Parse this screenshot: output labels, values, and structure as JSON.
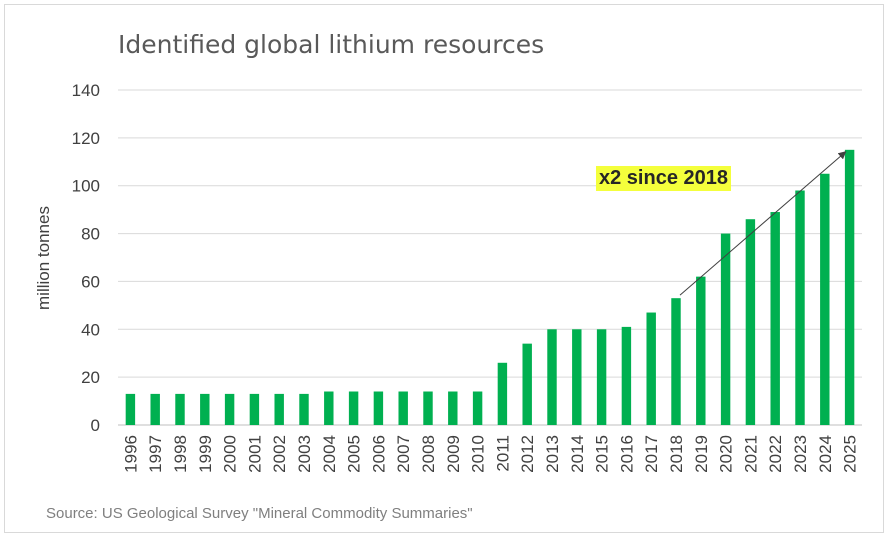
{
  "chart_data": {
    "type": "bar",
    "title": "Identified global lithium resources",
    "ylabel": "million tonnes",
    "xlabel": "",
    "ylim": [
      0,
      140
    ],
    "yticks": [
      0,
      20,
      40,
      60,
      80,
      100,
      120,
      140
    ],
    "grid": true,
    "categories": [
      "1996",
      "1997",
      "1998",
      "1999",
      "2000",
      "2001",
      "2002",
      "2003",
      "2004",
      "2005",
      "2006",
      "2007",
      "2008",
      "2009",
      "2010",
      "2011",
      "2012",
      "2013",
      "2014",
      "2015",
      "2016",
      "2017",
      "2018",
      "2019",
      "2020",
      "2021",
      "2022",
      "2023",
      "2024",
      "2025"
    ],
    "values": [
      13,
      13,
      13,
      13,
      13,
      13,
      13,
      13,
      14,
      14,
      14,
      14,
      14,
      14,
      14,
      26,
      34,
      40,
      40,
      40,
      41,
      47,
      53,
      62,
      80,
      86,
      89,
      98,
      105,
      115
    ],
    "bar_color": "#00b050",
    "annotation": {
      "text": "x2 since 2018",
      "arrow_from": {
        "x": "2018",
        "y": 53
      },
      "arrow_to": {
        "x": "2025",
        "y": 115
      },
      "highlight_color": "#f4ff3c"
    },
    "source": "Source: US Geological Survey \"Mineral Commodity Summaries\""
  }
}
